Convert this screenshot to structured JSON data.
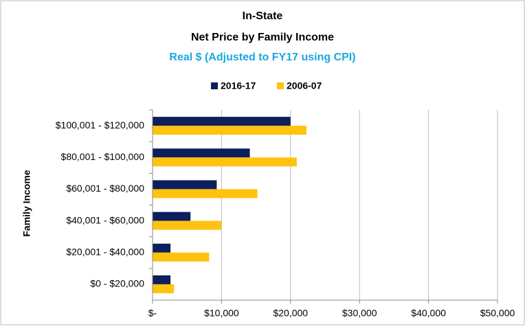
{
  "chart_data": {
    "type": "bar",
    "orientation": "horizontal",
    "title": "In-State",
    "subtitle_1": "Net Price by Family Income",
    "subtitle_2": "Real $ (Adjusted to FY17 using CPI)",
    "y_label": "Family Income",
    "categories": [
      "$100,001 - $120,000",
      "$80,001 - $100,000",
      "$60,001 - $80,000",
      "$40,001 - $60,000",
      "$20,001 - $40,000",
      "$0 - $20,000"
    ],
    "series": [
      {
        "name": "2016-17",
        "color": "#0d1f5c",
        "values": [
          20000,
          14100,
          9300,
          5500,
          2600,
          2600
        ]
      },
      {
        "name": "2006-07",
        "color": "#ffc20e",
        "values": [
          22300,
          20900,
          15200,
          10000,
          8200,
          3100
        ]
      }
    ],
    "xlim": [
      0,
      50000
    ],
    "xticks": [
      {
        "value": 0,
        "label": "$-"
      },
      {
        "value": 10000,
        "label": "$10,000"
      },
      {
        "value": 20000,
        "label": "$20,000"
      },
      {
        "value": 30000,
        "label": "$30,000"
      },
      {
        "value": 40000,
        "label": "$40,000"
      },
      {
        "value": 50000,
        "label": "$50,000"
      }
    ],
    "grid": true,
    "legend": "top"
  }
}
